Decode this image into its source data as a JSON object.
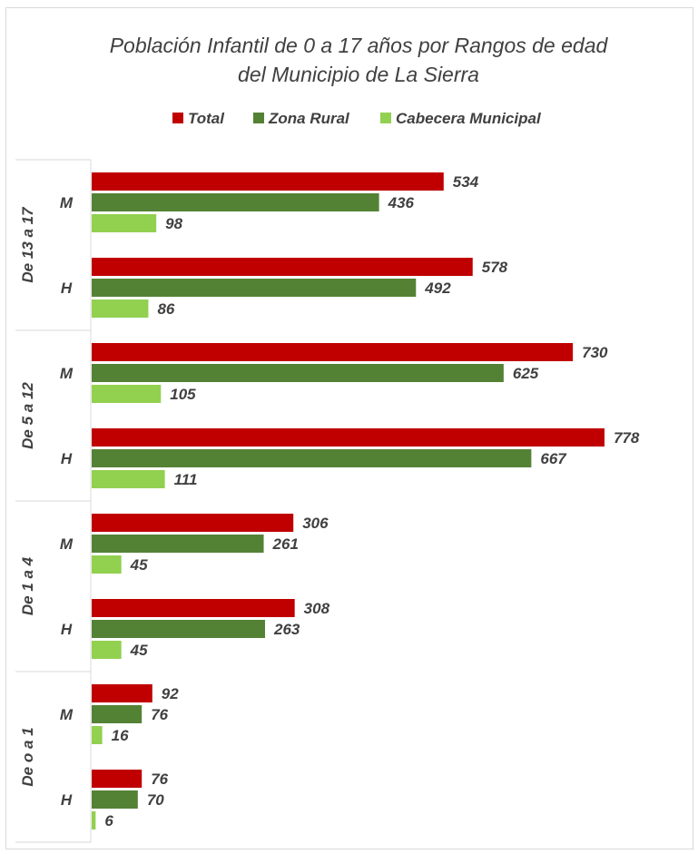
{
  "chart_data": {
    "type": "bar",
    "orientation": "horizontal",
    "title_line1": "Población Infantil de 0 a 17 años por Rangos de edad",
    "title_line2": "del Municipio de La Sierra",
    "xlabel": "",
    "ylabel": "",
    "grid": false,
    "legend_position": "top",
    "xlim": [
      0,
      820
    ],
    "groups": [
      {
        "label": "De 13 a 17",
        "categories": [
          {
            "label": "M",
            "values": [
              534,
              436,
              98
            ]
          },
          {
            "label": "H",
            "values": [
              578,
              492,
              86
            ]
          }
        ]
      },
      {
        "label": "De 5 a 12",
        "categories": [
          {
            "label": "M",
            "values": [
              730,
              625,
              105
            ]
          },
          {
            "label": "H",
            "values": [
              778,
              667,
              111
            ]
          }
        ]
      },
      {
        "label": "De 1 a 4",
        "categories": [
          {
            "label": "M",
            "values": [
              306,
              261,
              45
            ]
          },
          {
            "label": "H",
            "values": [
              308,
              263,
              45
            ]
          }
        ]
      },
      {
        "label": "De o a 1",
        "categories": [
          {
            "label": "M",
            "values": [
              92,
              76,
              16
            ]
          },
          {
            "label": "H",
            "values": [
              76,
              70,
              6
            ]
          }
        ]
      }
    ],
    "series": [
      {
        "name": "Total",
        "color": "#c00000"
      },
      {
        "name": "Zona Rural",
        "color": "#548235"
      },
      {
        "name": "Cabecera Municipal",
        "color": "#92d050"
      }
    ]
  }
}
